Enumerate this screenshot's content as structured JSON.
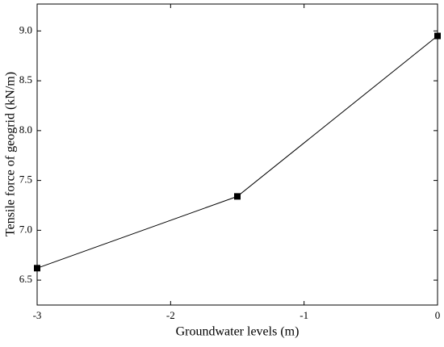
{
  "chart_data": {
    "type": "line",
    "x_label": "Groundwater levels (m)",
    "y_label": "Tensile force of geogrid (kN/m)",
    "x": [
      -3,
      -1.5,
      0
    ],
    "series": [
      {
        "color": "#000000",
        "values": [
          6.62,
          7.34,
          8.95
        ]
      }
    ],
    "xlim": [
      -3,
      0
    ],
    "xticks": [
      -3,
      -2,
      -1,
      0
    ],
    "ylim": [
      6.25,
      9.27
    ],
    "yticks": [
      {
        "value": 6.5,
        "label": "6.5"
      },
      {
        "value": 7,
        "label": "7.0"
      },
      {
        "value": 7.5,
        "label": "7.5"
      },
      {
        "value": 8,
        "label": "8.0"
      },
      {
        "value": 8.5,
        "label": "8.5"
      },
      {
        "value": 9,
        "label": "9.0"
      }
    ],
    "grid": false
  }
}
